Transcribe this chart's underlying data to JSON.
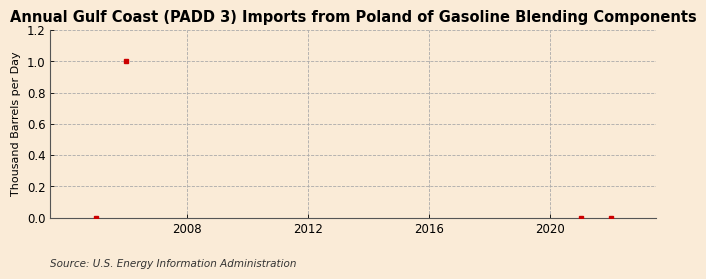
{
  "title": "Annual Gulf Coast (PADD 3) Imports from Poland of Gasoline Blending Components",
  "ylabel": "Thousand Barrels per Day",
  "source": "Source: U.S. Energy Information Administration",
  "background_color": "#faebd7",
  "plot_bg_color": "#faebd7",
  "marker_color": "#cc0000",
  "x_data": [
    2005,
    2006,
    2021,
    2022
  ],
  "y_data": [
    0.0,
    1.0,
    0.0,
    0.0
  ],
  "xlim": [
    2003.5,
    2023.5
  ],
  "ylim": [
    0.0,
    1.2
  ],
  "yticks": [
    0.0,
    0.2,
    0.4,
    0.6,
    0.8,
    1.0,
    1.2
  ],
  "xticks": [
    2008,
    2012,
    2016,
    2020
  ],
  "grid_color": "#aaaaaa",
  "title_fontsize": 10.5,
  "label_fontsize": 8,
  "tick_fontsize": 8.5,
  "source_fontsize": 7.5
}
